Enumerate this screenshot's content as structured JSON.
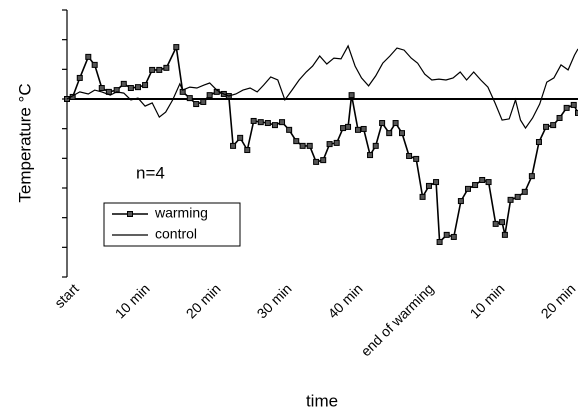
{
  "chart_data": {
    "type": "line",
    "y_label": "Temperature °C",
    "x_label": "time",
    "annotation": "n=4",
    "xlim": [
      0,
      72
    ],
    "ylim": [
      -6,
      3
    ],
    "yticks": [
      -6,
      -5,
      -4,
      -3,
      -2,
      -1,
      0,
      1,
      2,
      3
    ],
    "zero_line": 0,
    "xticks": [
      {
        "value": 0,
        "label": "start"
      },
      {
        "value": 10,
        "label": "10 min"
      },
      {
        "value": 20,
        "label": "20 min"
      },
      {
        "value": 30,
        "label": "30 min"
      },
      {
        "value": 40,
        "label": "40 min"
      },
      {
        "value": 50,
        "label": "end of warming"
      },
      {
        "value": 60,
        "label": "10 min"
      },
      {
        "value": 70,
        "label": "20 min"
      }
    ],
    "series": [
      {
        "name": "warming",
        "color": "#000000",
        "marker": "square",
        "x": [
          0,
          0.8,
          1.8,
          3.0,
          3.9,
          4.9,
          5.9,
          7.0,
          8.0,
          9.0,
          10,
          11,
          12,
          13,
          14,
          15.4,
          16.3,
          17.3,
          18.2,
          19.2,
          20.1,
          21.1,
          22.1,
          22.8,
          23.4,
          24.4,
          25.4,
          26.3,
          27.3,
          28.3,
          29.3,
          30.3,
          31.3,
          32.3,
          33.2,
          34.2,
          35.1,
          36.1,
          37.0,
          38.0,
          38.9,
          39.6,
          40.1,
          41.0,
          41.8,
          42.7,
          43.5,
          44.4,
          45.4,
          46.3,
          47.2,
          48.2,
          49.2,
          50.1,
          51.0,
          52.0,
          52.5,
          53.5,
          54.5,
          55.5,
          56.5,
          57.5,
          58.5,
          59.4,
          60.4,
          61.3,
          61.7,
          62.5,
          63.5,
          64.5,
          65.5,
          66.5,
          67.5,
          68.5,
          69.4,
          70.4,
          71.4,
          72.0
        ],
        "values": [
          0,
          0.07,
          0.71,
          1.42,
          1.15,
          0.37,
          0.24,
          0.3,
          0.51,
          0.37,
          0.4,
          0.47,
          0.98,
          0.98,
          1.05,
          1.75,
          0.24,
          0.03,
          -0.17,
          -0.1,
          0.13,
          0.24,
          0.17,
          0.1,
          -1.58,
          -1.31,
          -1.72,
          -0.74,
          -0.78,
          -0.81,
          -0.88,
          -0.78,
          -1.04,
          -1.42,
          -1.58,
          -1.58,
          -2.12,
          -2.06,
          -1.52,
          -1.48,
          -0.98,
          -0.94,
          0.13,
          -1.04,
          -1.01,
          -1.89,
          -1.58,
          -0.81,
          -1.15,
          -0.81,
          -1.15,
          -1.92,
          -2.02,
          -3.3,
          -2.93,
          -2.8,
          -4.82,
          -4.58,
          -4.65,
          -3.44,
          -3.03,
          -2.9,
          -2.73,
          -2.8,
          -4.21,
          -4.15,
          -4.58,
          -3.4,
          -3.3,
          -3.13,
          -2.6,
          -1.45,
          -0.94,
          -0.88,
          -0.64,
          -0.3,
          -0.2,
          -0.47
        ]
      },
      {
        "name": "control",
        "color": "#000000",
        "marker": "none",
        "x": [
          0,
          1.8,
          3.0,
          3.9,
          4.9,
          6.1,
          7.0,
          8.0,
          9.0,
          10.0,
          11,
          12,
          13,
          13.9,
          14.9,
          15.9,
          16.3,
          17.3,
          18.3,
          19.3,
          20.1,
          21.1,
          22.1,
          22.8,
          23.8,
          24.8,
          25.8,
          26.8,
          27.7,
          28.7,
          29.7,
          30.7,
          31.7,
          32.7,
          33.7,
          34.6,
          35.6,
          36.6,
          37.6,
          38.6,
          39.6,
          40.6,
          41.5,
          42.5,
          43.5,
          44.5,
          45.5,
          46.5,
          47.5,
          48.5,
          49.4,
          50.4,
          51.4,
          52.4,
          53.4,
          54.4,
          55.4,
          56.3,
          57.3,
          58.3,
          59.3,
          60.3,
          61.3,
          62.3,
          63.2,
          63.9,
          64.6,
          65.6,
          66.6,
          67.6,
          68.6,
          69.6,
          70.6,
          71.5,
          72.0
        ],
        "values": [
          0,
          0.24,
          0.17,
          0.3,
          0.24,
          0.13,
          0.24,
          0.2,
          -0.03,
          0.03,
          -0.24,
          -0.13,
          -0.61,
          -0.44,
          -0.03,
          0.51,
          0.3,
          0.4,
          0.37,
          0.47,
          0.54,
          0.3,
          0.17,
          0.1,
          0.17,
          0.3,
          0.37,
          0.24,
          0.47,
          0.74,
          0.64,
          -0.03,
          0.3,
          0.64,
          0.91,
          1.11,
          1.45,
          1.18,
          1.38,
          1.35,
          1.79,
          1.11,
          0.71,
          0.44,
          0.78,
          1.21,
          1.45,
          1.72,
          1.65,
          1.38,
          1.21,
          0.84,
          0.64,
          0.67,
          0.64,
          0.71,
          0.91,
          0.64,
          0.91,
          0.64,
          0.4,
          -0.13,
          -0.71,
          -0.67,
          -0.03,
          -0.71,
          -0.98,
          -0.64,
          -0.17,
          0.57,
          0.71,
          1.15,
          0.98,
          1.48,
          1.69
        ]
      }
    ]
  }
}
